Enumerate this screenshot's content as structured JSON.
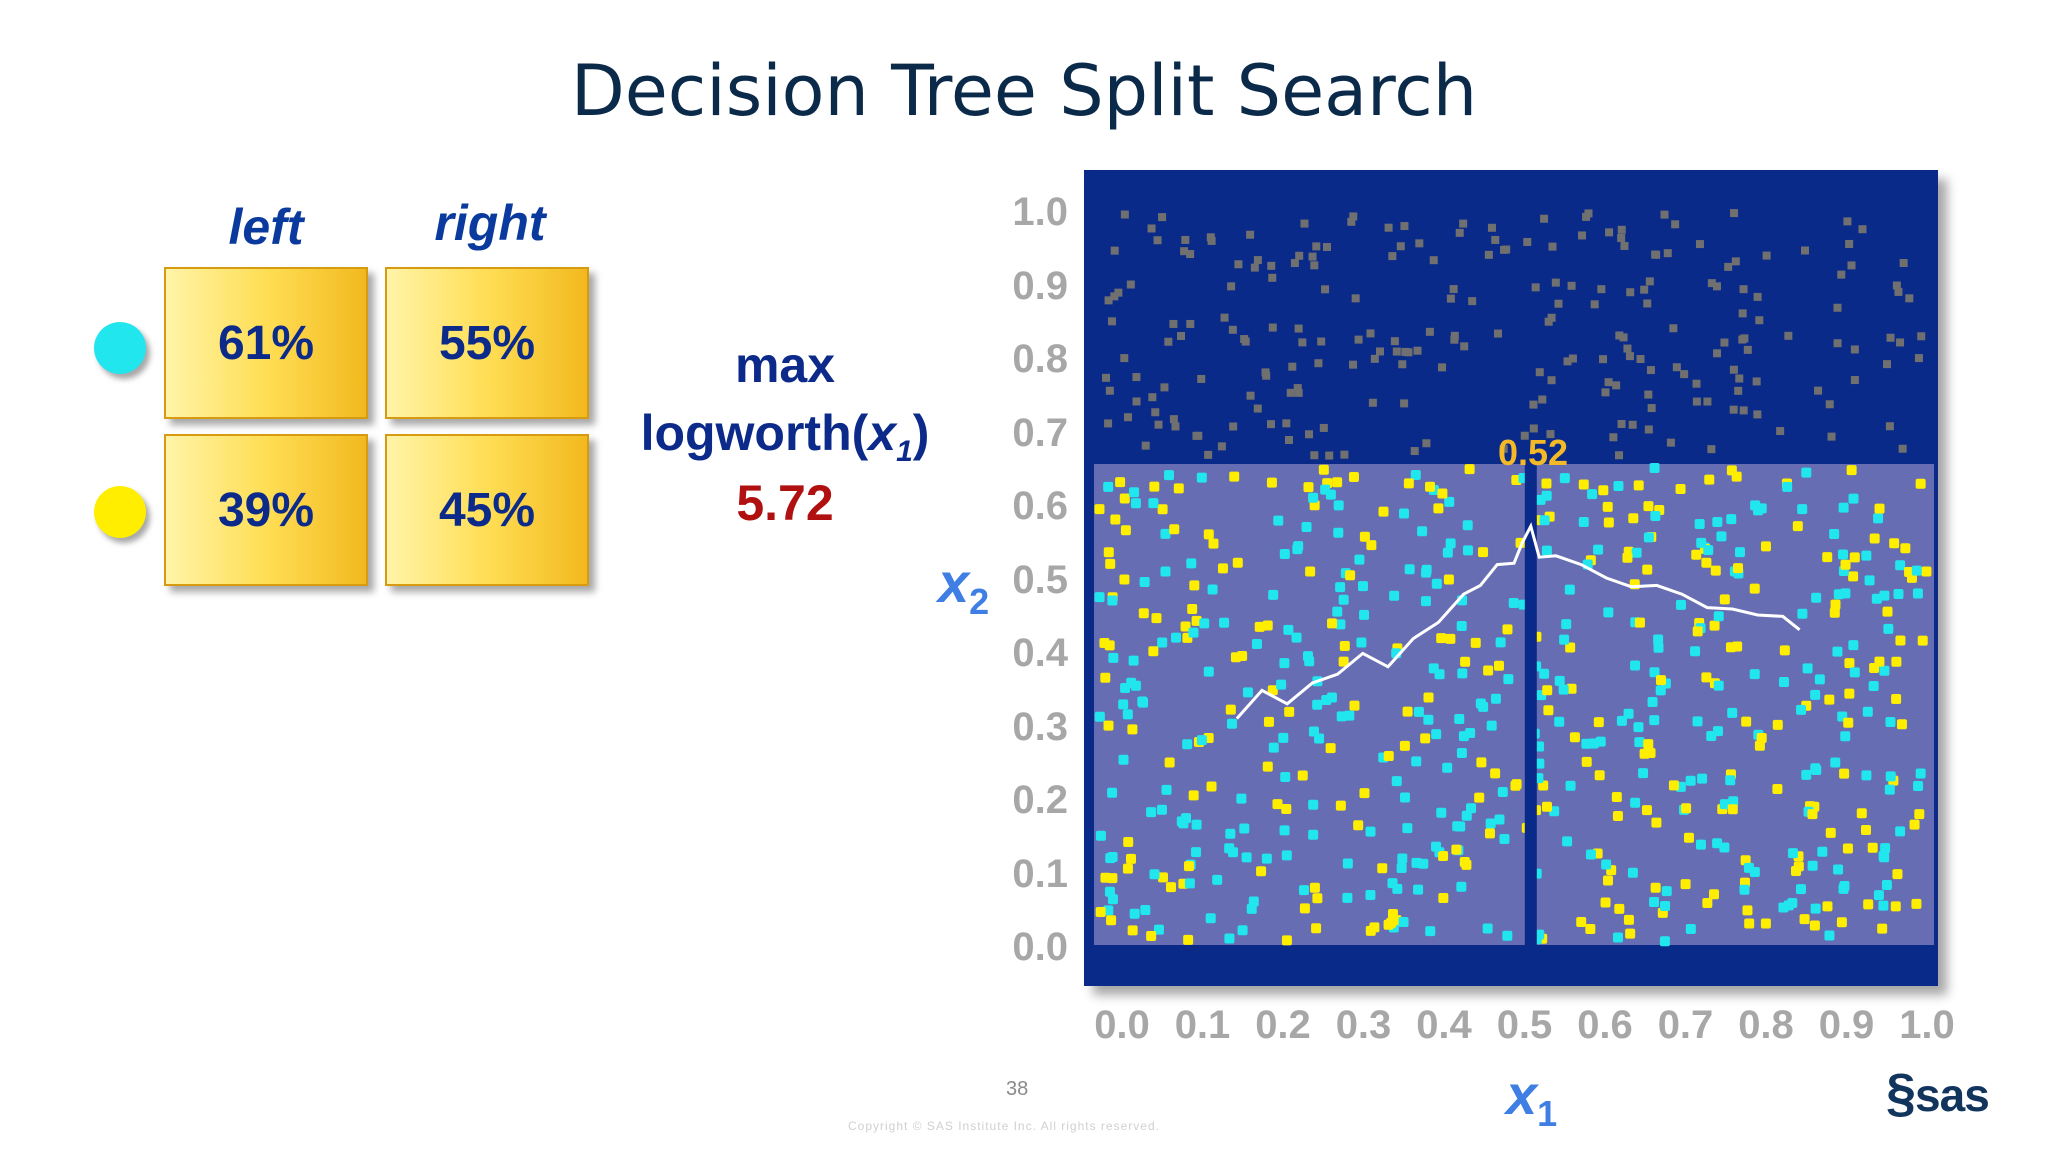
{
  "title": "Decision Tree Split Search",
  "table": {
    "col_left": "left",
    "col_right": "right",
    "rows": [
      {
        "class": "cyan",
        "color": "#22e6ee",
        "left": "61%",
        "right": "55%"
      },
      {
        "class": "yellow",
        "color": "#ffee00",
        "left": "39%",
        "right": "45%"
      }
    ]
  },
  "metric": {
    "line1": "max",
    "line2_prefix": "logworth(",
    "line2_var": "x",
    "line2_sub": "1",
    "line2_suffix": ")",
    "value": "5.72"
  },
  "chart_data": {
    "type": "scatter",
    "x_label": "x",
    "x_sub": "1",
    "y_label": "x",
    "y_sub": "2",
    "xlim": [
      0.0,
      1.0
    ],
    "ylim": [
      0.0,
      1.0
    ],
    "x_ticks": [
      "0.0",
      "0.1",
      "0.2",
      "0.3",
      "0.4",
      "0.5",
      "0.6",
      "0.7",
      "0.8",
      "0.9",
      "1.0"
    ],
    "y_ticks": [
      "1.0",
      "0.9",
      "0.8",
      "0.7",
      "0.6",
      "0.5",
      "0.4",
      "0.3",
      "0.2",
      "0.1",
      "0.0"
    ],
    "split_value": "0.52",
    "split_x": 0.52,
    "focus_region_y_max": 0.65,
    "colors": {
      "background": "#0a2a8a",
      "region": "#8a88c4",
      "cyan": "#22e6ee",
      "yellow": "#ffee00",
      "gray": "#707070",
      "curve": "#ffffff"
    },
    "logworth_curve": {
      "description_series": "logworth vs x1",
      "x": [
        0.17,
        0.2,
        0.23,
        0.26,
        0.29,
        0.32,
        0.35,
        0.38,
        0.41,
        0.44,
        0.46,
        0.48,
        0.5,
        0.51,
        0.52,
        0.53,
        0.55,
        0.58,
        0.61,
        0.64,
        0.67,
        0.7,
        0.73,
        0.76,
        0.79,
        0.82,
        0.84
      ],
      "y": [
        0.31,
        0.34,
        0.33,
        0.35,
        0.37,
        0.39,
        0.38,
        0.41,
        0.44,
        0.47,
        0.49,
        0.51,
        0.52,
        0.54,
        0.57,
        0.52,
        0.53,
        0.51,
        0.5,
        0.48,
        0.49,
        0.47,
        0.46,
        0.45,
        0.45,
        0.44,
        0.43
      ]
    }
  },
  "footer": {
    "page": "38",
    "copyright": "Copyright © SAS Institute Inc. All rights reserved.",
    "logo": "sas"
  }
}
